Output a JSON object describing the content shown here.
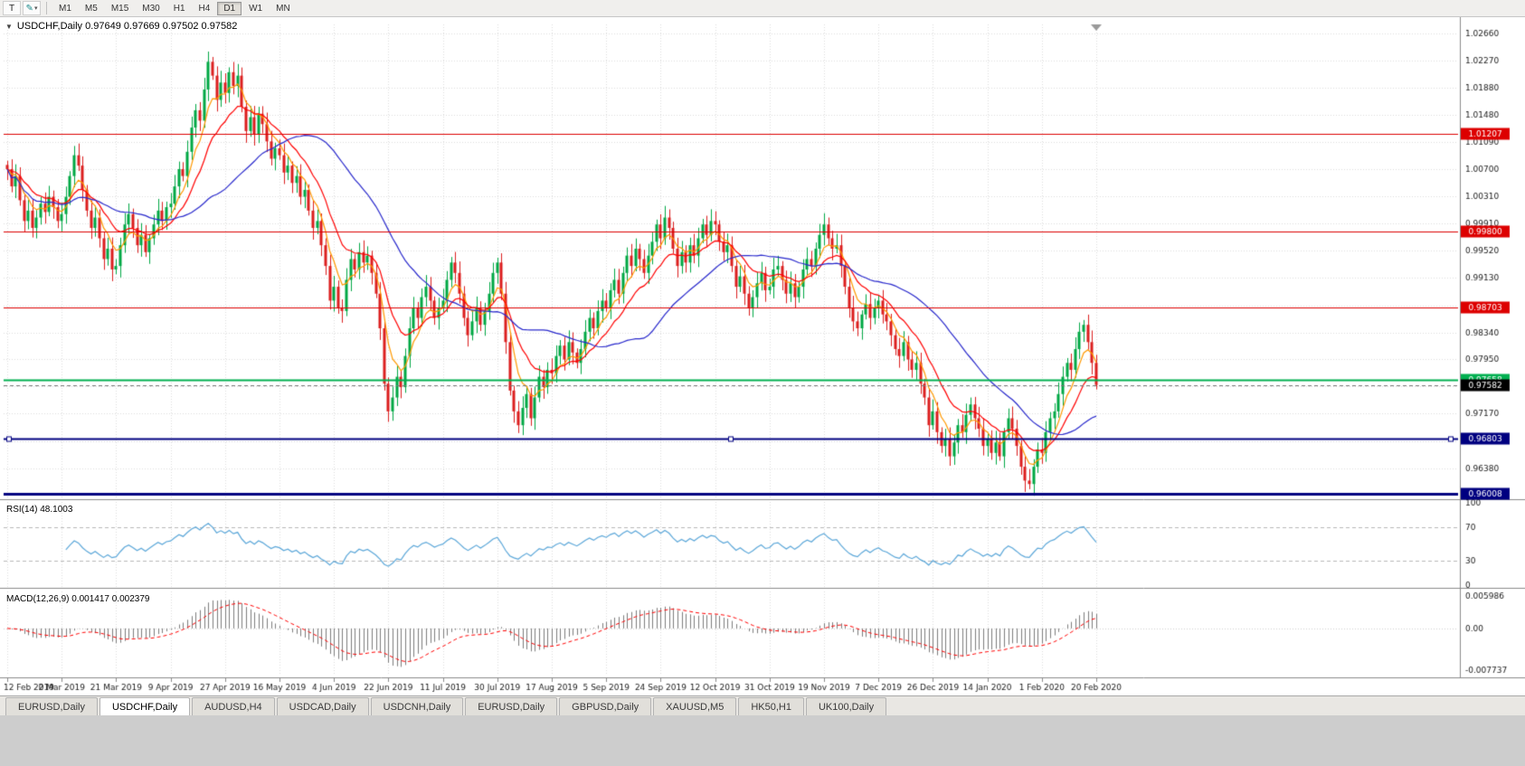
{
  "icons": {
    "collapse": "▼",
    "dropdown": "▾",
    "text_tool": "T",
    "drawing_tool": "✎"
  },
  "toolbar": {
    "periods": [
      "M1",
      "M5",
      "M15",
      "M30",
      "H1",
      "H4",
      "D1",
      "W1",
      "MN"
    ],
    "active_period": "D1"
  },
  "chart_header": {
    "symbol_line": "USDCHF,Daily  0.97649 0.97669 0.97502 0.97582"
  },
  "indicators": {
    "rsi_label": "RSI(14) 48.1003",
    "macd_label": "MACD(12,26,9) 0.001417 0.002379"
  },
  "bottom_tabs": {
    "tabs": [
      "EURUSD,Daily",
      "USDCHF,Daily",
      "AUDUSD,H4",
      "USDCAD,Daily",
      "USDCNH,Daily",
      "EURUSD,Daily",
      "GBPUSD,Daily",
      "XAUUSD,M5",
      "HK50,H1",
      "UK100,Daily"
    ],
    "active_index": 1
  },
  "chart_data": {
    "type": "candlestick",
    "symbol": "USDCHF",
    "timeframe": "Daily",
    "ohlc": {
      "open": "0.97649",
      "high": "0.97669",
      "low": "0.97502",
      "close": "0.97582"
    },
    "price_axis_ticks": [
      "1.02660",
      "1.02270",
      "1.01880",
      "1.01480",
      "1.01090",
      "1.00700",
      "1.00310",
      "0.99910",
      "0.99520",
      "0.99130",
      "0.98730",
      "0.98340",
      "0.97950",
      "0.97560",
      "0.97170",
      "0.96770",
      "0.96380"
    ],
    "date_ticks": [
      "12 Feb 2019",
      "2 Mar 2019",
      "21 Mar 2019",
      "9 Apr 2019",
      "27 Apr 2019",
      "16 May 2019",
      "4 Jun 2019",
      "22 Jun 2019",
      "11 Jul 2019",
      "30 Jul 2019",
      "17 Aug 2019",
      "5 Sep 2019",
      "24 Sep 2019",
      "12 Oct 2019",
      "31 Oct 2019",
      "19 Nov 2019",
      "7 Dec 2019",
      "26 Dec 2019",
      "14 Jan 2020",
      "1 Feb 2020",
      "20 Feb 2020"
    ],
    "closes": [
      1.007,
      1.0045,
      1.006,
      1.0025,
      0.9995,
      1.001,
      0.9985,
      1.0,
      1.002,
      1.0008,
      1.003,
      1.0015,
      0.9995,
      1.0005,
      1.003,
      1.006,
      1.009,
      1.0075,
      1.004,
      1.001,
      0.9985,
      1.0,
      0.997,
      0.994,
      0.9955,
      0.9925,
      0.993,
      0.996,
      0.999,
      1.0005,
      0.9985,
      0.996,
      0.9975,
      0.995,
      0.997,
      0.999,
      1.001,
      0.9995,
      1.0015,
      1.002,
      1.0045,
      1.007,
      1.006,
      1.0095,
      1.013,
      1.0155,
      1.014,
      1.0185,
      1.0225,
      1.0205,
      1.017,
      1.0195,
      1.018,
      1.021,
      1.019,
      1.0205,
      1.016,
      1.0125,
      1.0145,
      1.012,
      1.015,
      1.0135,
      1.011,
      1.0085,
      1.01,
      1.009,
      1.0065,
      1.0075,
      1.005,
      1.006,
      1.003,
      1.004,
      1.001,
      0.9985,
      0.9995,
      0.996,
      0.993,
      0.988,
      0.99,
      0.987,
      0.9865,
      0.991,
      0.994,
      0.9925,
      0.995,
      0.9935,
      0.9945,
      0.992,
      0.989,
      0.984,
      0.976,
      0.972,
      0.974,
      0.977,
      0.9755,
      0.98,
      0.984,
      0.987,
      0.9855,
      0.9885,
      0.99,
      0.988,
      0.9855,
      0.987,
      0.988,
      0.991,
      0.9935,
      0.992,
      0.989,
      0.9855,
      0.983,
      0.985,
      0.987,
      0.9845,
      0.9865,
      0.989,
      0.992,
      0.9935,
      0.989,
      0.982,
      0.975,
      0.972,
      0.97,
      0.9725,
      0.9745,
      0.971,
      0.974,
      0.977,
      0.9755,
      0.978,
      0.9775,
      0.98,
      0.9815,
      0.9795,
      0.982,
      0.9805,
      0.979,
      0.981,
      0.9835,
      0.9855,
      0.984,
      0.9865,
      0.988,
      0.987,
      0.9895,
      0.991,
      0.989,
      0.992,
      0.9945,
      0.993,
      0.9955,
      0.994,
      0.992,
      0.9945,
      0.9965,
      0.999,
      0.997,
      1.0,
      0.9985,
      0.9955,
      0.993,
      0.995,
      0.9935,
      0.996,
      0.9945,
      0.997,
      0.999,
      0.9975,
      0.9995,
      0.999,
      0.9965,
      0.995,
      0.996,
      0.993,
      0.99,
      0.9915,
      0.989,
      0.987,
      0.9885,
      0.9905,
      0.992,
      0.9895,
      0.99,
      0.9925,
      0.993,
      0.991,
      0.989,
      0.9905,
      0.9885,
      0.99,
      0.9925,
      0.994,
      0.993,
      0.9955,
      0.9975,
      0.999,
      0.997,
      0.9955,
      0.996,
      0.993,
      0.99,
      0.987,
      0.985,
      0.984,
      0.986,
      0.9875,
      0.9855,
      0.987,
      0.988,
      0.986,
      0.985,
      0.983,
      0.981,
      0.98,
      0.982,
      0.9795,
      0.978,
      0.979,
      0.976,
      0.974,
      0.97,
      0.972,
      0.969,
      0.967,
      0.968,
      0.9655,
      0.9675,
      0.97,
      0.969,
      0.9715,
      0.973,
      0.971,
      0.9695,
      0.967,
      0.968,
      0.966,
      0.9675,
      0.9655,
      0.969,
      0.971,
      0.9695,
      0.967,
      0.964,
      0.962,
      0.9615,
      0.964,
      0.9665,
      0.966,
      0.969,
      0.971,
      0.972,
      0.9745,
      0.977,
      0.979,
      0.978,
      0.981,
      0.9835,
      0.9845,
      0.982,
      0.979,
      0.97582
    ],
    "levels": [
      {
        "price": 1.01207,
        "label": "1.01207",
        "color": "#dd0000",
        "width": 1,
        "selected": false
      },
      {
        "price": 0.998,
        "label": "0.99800",
        "color": "#dd0000",
        "width": 1,
        "selected": false
      },
      {
        "price": 0.98703,
        "label": "0.98703",
        "color": "#dd0000",
        "width": 1,
        "selected": false
      },
      {
        "price": 0.97658,
        "label": "0.97658",
        "color": "#00b050",
        "width": 2,
        "selected": false
      },
      {
        "price": 0.96803,
        "label": "0.96803",
        "color": "#000080",
        "width": 2,
        "selected": true
      },
      {
        "price": 0.96008,
        "label": "0.96008",
        "color": "#000080",
        "width": 3,
        "selected": false
      }
    ],
    "current_price": {
      "value": 0.97582,
      "label": "0.97582",
      "box_color": "#000000"
    },
    "moving_averages": [
      {
        "name": "fast",
        "period": 6,
        "method": "ema",
        "color": "#ff9900"
      },
      {
        "name": "mid",
        "period": 14,
        "method": "ema",
        "color": "#ff0000"
      },
      {
        "name": "slow",
        "period": 34,
        "method": "sma",
        "color": "#2828cc"
      }
    ],
    "rsi": {
      "period": 14,
      "value": "48.1003",
      "axis_ticks": [
        "100",
        "70",
        "30",
        "0"
      ],
      "guide_levels": [
        70,
        30
      ],
      "color": "#5ba7d9"
    },
    "macd": {
      "fast": 12,
      "slow": 26,
      "signal": 9,
      "main_value": "0.001417",
      "signal_value": "0.002379",
      "axis_ticks": [
        "0.005986",
        "0.00",
        "-0.007737"
      ],
      "hist_color": "#7d7d7d",
      "signal_color": "#ff0000"
    },
    "colors": {
      "up": "#00a844",
      "down": "#dc1e1e",
      "grid": "#dcdcdc",
      "axis_text": "#1a1a1a",
      "panel_border": "#8a8a8a"
    }
  }
}
